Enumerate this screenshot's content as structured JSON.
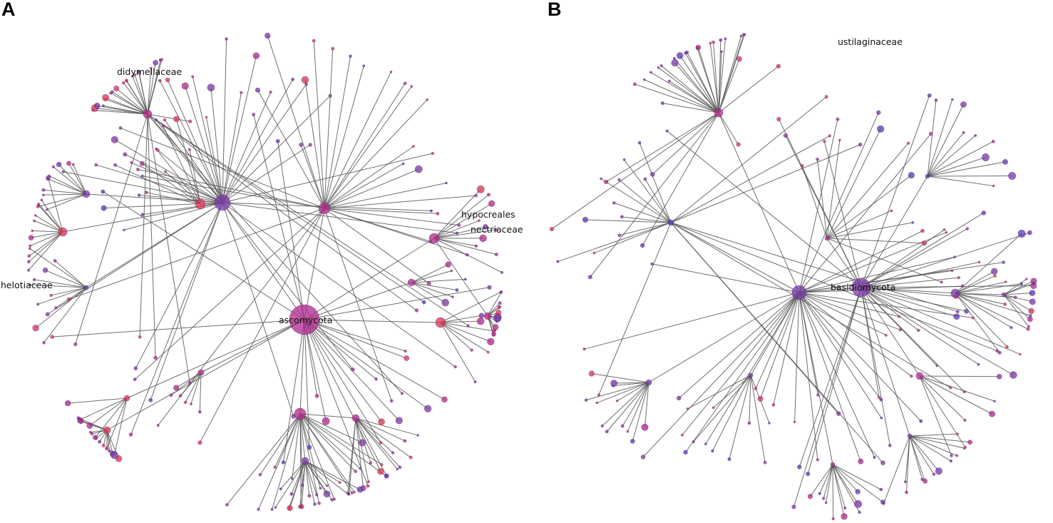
{
  "figure": {
    "panels": [
      {
        "id": "A",
        "label": "A",
        "named_nodes": [
          "ascomycota",
          "didymellaceae",
          "hypocreales",
          "nectriaceae",
          "helotiaceae"
        ]
      },
      {
        "id": "B",
        "label": "B",
        "named_nodes": [
          "basidiomycota",
          "ustilaginaceae"
        ]
      }
    ]
  },
  "colors": {
    "edge": "#555555",
    "node_purple": "#7b3ea8",
    "node_magenta": "#b0308e",
    "node_red": "#d83a55",
    "node_violet": "#5b3fb8",
    "background": "#ffffff"
  }
}
